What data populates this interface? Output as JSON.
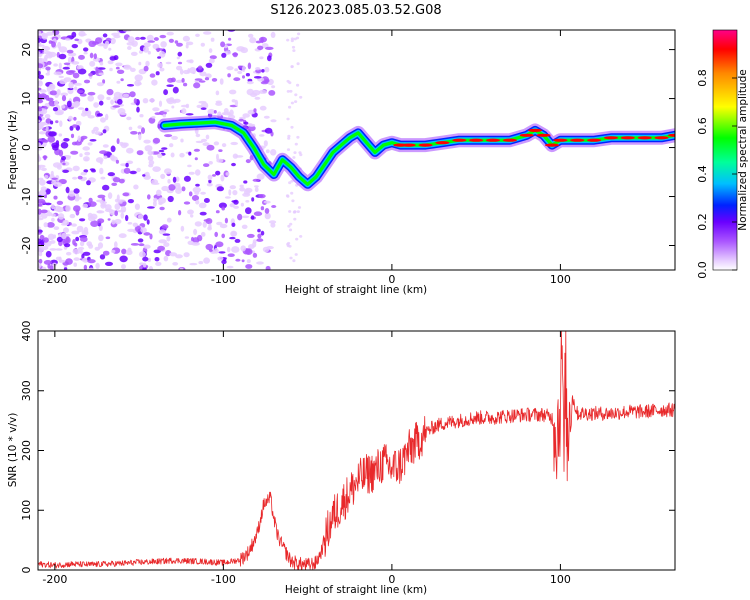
{
  "title": "S126.2023.085.03.52.G08",
  "colors": {
    "snr_line": "#e8282a",
    "colormap": [
      "#e6ccff",
      "#aa55ff",
      "#6a00ff",
      "#0022ff",
      "#00bfff",
      "#00ff99",
      "#00ff00",
      "#ffff00",
      "#ff8800",
      "#ff0000",
      "#ff0088"
    ]
  },
  "chart_data": [
    {
      "type": "heatmap",
      "xlabel": "Height of straight line (km)",
      "ylabel": "Frequency (Hz)",
      "xlim": [
        -210,
        168
      ],
      "ylim": [
        -25,
        24
      ],
      "xticks": [
        -200,
        -100,
        0,
        100
      ],
      "xtick_labels": [
        "-200",
        "-100",
        "0",
        "100"
      ],
      "yticks": [
        -20,
        -10,
        0,
        10,
        20
      ],
      "ytick_labels": [
        "-20",
        "-10",
        "0",
        "10",
        "20"
      ],
      "colorbar": {
        "label": "Normalized spectral amplitude",
        "range": [
          0,
          1
        ],
        "ticks": [
          0.0,
          0.2,
          0.4,
          0.6,
          0.8
        ],
        "tick_labels": [
          "0.0",
          "0.2",
          "0.4",
          "0.6",
          "0.8"
        ]
      },
      "ridge": {
        "height_km": [
          -135,
          -125,
          -115,
          -105,
          -95,
          -88,
          -82,
          -76,
          -70,
          -65,
          -60,
          -55,
          -50,
          -45,
          -40,
          -35,
          -30,
          -25,
          -20,
          -15,
          -10,
          -5,
          0,
          5,
          10,
          20,
          30,
          40,
          50,
          60,
          70,
          80,
          85,
          90,
          95,
          100,
          110,
          120,
          130,
          140,
          150,
          160,
          168
        ],
        "frequency_hz": [
          4.5,
          4.8,
          5.0,
          5.2,
          4.5,
          3.0,
          0.0,
          -3.5,
          -5.5,
          -2.5,
          -4.0,
          -6.0,
          -7.5,
          -6.0,
          -3.5,
          -1.0,
          0.5,
          2.0,
          3.0,
          1.0,
          -1.0,
          0.5,
          1.0,
          0.5,
          0.5,
          0.5,
          1.0,
          1.5,
          1.5,
          1.5,
          1.5,
          2.5,
          3.5,
          2.5,
          0.5,
          1.5,
          1.5,
          1.5,
          2.0,
          2.0,
          2.0,
          2.0,
          2.5
        ]
      }
    },
    {
      "type": "line",
      "xlabel": "Height of straight line (km)",
      "ylabel": "SNR (10 * v/v)",
      "xlim": [
        -210,
        168
      ],
      "ylim": [
        0,
        400
      ],
      "xticks": [
        -200,
        -100,
        0,
        100
      ],
      "xtick_labels": [
        "-200",
        "-100",
        "0",
        "100"
      ],
      "yticks": [
        0,
        100,
        200,
        300,
        400
      ],
      "ytick_labels": [
        "0",
        "100",
        "200",
        "300",
        "400"
      ],
      "series": [
        {
          "x": [
            -210,
            -200,
            -190,
            -180,
            -170,
            -160,
            -150,
            -140,
            -130,
            -120,
            -110,
            -100,
            -90,
            -85,
            -80,
            -76,
            -72,
            -70,
            -68,
            -65,
            -60,
            -55,
            -50,
            -45,
            -42,
            -40,
            -35,
            -30,
            -25,
            -20,
            -15,
            -10,
            -5,
            0,
            5,
            10,
            15,
            20,
            25,
            30,
            40,
            50,
            60,
            70,
            80,
            90,
            95,
            98,
            100,
            101,
            102,
            103,
            104,
            106,
            110,
            120,
            130,
            140,
            150,
            160,
            168
          ],
          "y": [
            10,
            8,
            10,
            9,
            10,
            11,
            13,
            14,
            16,
            15,
            14,
            12,
            17,
            30,
            60,
            110,
            120,
            85,
            60,
            40,
            15,
            10,
            8,
            12,
            30,
            50,
            90,
            110,
            130,
            150,
            160,
            165,
            180,
            170,
            175,
            200,
            215,
            230,
            240,
            245,
            250,
            255,
            255,
            258,
            260,
            260,
            255,
            230,
            280,
            400,
            150,
            350,
            200,
            300,
            262,
            262,
            262,
            265,
            265,
            268,
            268
          ]
        }
      ]
    }
  ]
}
